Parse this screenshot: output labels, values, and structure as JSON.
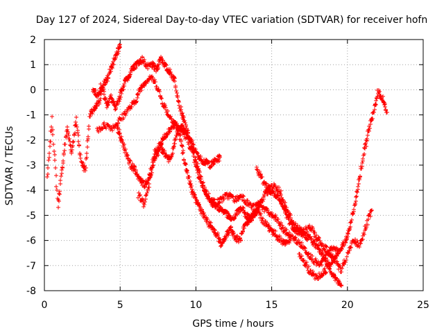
{
  "chart_data": {
    "type": "scatter",
    "title": "Day 127 of 2024, Sidereal Day-to-day VTEC variation (SDTVAR) for receiver hofn",
    "xlabel": "GPS time / hours",
    "ylabel": "SDTVAR / TECUs",
    "xlim": [
      0,
      25
    ],
    "ylim": [
      -8,
      2
    ],
    "xticks": [
      0,
      5,
      10,
      15,
      20,
      25
    ],
    "yticks": [
      -8,
      -7,
      -6,
      -5,
      -4,
      -3,
      -2,
      -1,
      0,
      1,
      2
    ],
    "xtick_labels": [
      "0",
      "5",
      "10",
      "15",
      "20",
      "25"
    ],
    "ytick_labels": [
      "-8",
      "-7",
      "-6",
      "-5",
      "-4",
      "-3",
      "-2",
      "-1",
      "0",
      "1",
      "2"
    ],
    "grid": true,
    "marker": "+",
    "marker_color": "#ff0000",
    "series": [
      {
        "name": "s1",
        "x": [
          0.2,
          0.5,
          0.9,
          1.2,
          1.5,
          1.8,
          2.1,
          2.4,
          2.7,
          3.0,
          3.3,
          3.6,
          3.9,
          4.2,
          4.5,
          4.8,
          5.0
        ],
        "y": [
          -3.5,
          -1.2,
          -4.6,
          -3.0,
          -1.5,
          -2.5,
          -1.2,
          -2.8,
          -3.2,
          -1.0,
          -0.8,
          -0.5,
          0.2,
          0.5,
          1.0,
          1.5,
          1.8
        ]
      },
      {
        "name": "s2",
        "x": [
          3.2,
          3.5,
          3.8,
          4.1,
          4.4,
          4.7,
          5.0,
          5.3,
          5.6,
          5.9,
          6.2,
          6.5,
          6.8,
          7.1,
          7.4,
          7.7,
          8.0,
          8.3,
          8.6,
          8.9,
          9.2,
          9.5,
          9.8,
          10.1,
          10.4,
          10.7,
          11.0,
          11.3,
          11.6
        ],
        "y": [
          0.0,
          -0.2,
          0.2,
          -0.6,
          -0.3,
          -0.8,
          -0.2,
          0.3,
          0.6,
          0.9,
          1.1,
          1.2,
          0.9,
          1.0,
          0.8,
          1.3,
          0.9,
          0.7,
          0.4,
          -0.6,
          -1.2,
          -1.8,
          -2.2,
          -2.6,
          -2.8,
          -2.9,
          -3.0,
          -2.8,
          -2.7
        ]
      },
      {
        "name": "s3",
        "x": [
          3.5,
          4.0,
          4.5,
          5.0,
          5.5,
          6.0,
          6.3,
          6.6,
          7.0,
          7.4,
          7.8,
          8.2,
          8.6,
          9.0,
          9.4,
          9.8,
          10.2,
          10.6,
          11.0,
          11.4,
          11.8,
          12.2,
          12.6,
          13.0,
          13.4,
          13.8,
          14.2,
          14.6,
          15.0,
          15.4,
          15.8,
          16.2,
          16.6,
          17.0,
          17.4,
          17.8,
          18.2,
          18.6,
          19.0,
          19.4
        ],
        "y": [
          -1.6,
          -1.4,
          -1.5,
          -1.2,
          -0.8,
          -0.5,
          0.0,
          0.3,
          0.5,
          0.2,
          -0.5,
          -1.0,
          -1.3,
          -1.6,
          -1.9,
          -2.6,
          -3.5,
          -4.0,
          -4.4,
          -4.5,
          -4.3,
          -4.2,
          -4.4,
          -4.2,
          -4.5,
          -4.7,
          -4.5,
          -4.8,
          -5.0,
          -5.2,
          -5.6,
          -5.8,
          -6.0,
          -6.2,
          -6.5,
          -6.8,
          -7.0,
          -6.6,
          -6.3,
          -6.4
        ]
      },
      {
        "name": "s4",
        "x": [
          4.8,
          5.1,
          5.4,
          5.7,
          6.0,
          6.3,
          6.6,
          6.9,
          7.2,
          7.5,
          7.8,
          8.1,
          8.4,
          8.7,
          9.0,
          9.3,
          9.6,
          9.9,
          10.2,
          10.5,
          10.8,
          11.1,
          11.4,
          11.7,
          12.0,
          12.3,
          12.6,
          12.9,
          13.2,
          13.5,
          13.8,
          14.1,
          14.4,
          14.7,
          15.0,
          15.3,
          15.6,
          15.9,
          16.2
        ],
        "y": [
          -1.5,
          -2.0,
          -2.5,
          -3.0,
          -3.2,
          -3.6,
          -3.8,
          -3.5,
          -2.8,
          -2.5,
          -2.0,
          -1.7,
          -1.5,
          -1.4,
          -2.0,
          -3.0,
          -3.7,
          -4.3,
          -4.6,
          -5.0,
          -5.3,
          -5.5,
          -5.8,
          -6.2,
          -5.8,
          -5.5,
          -5.9,
          -6.0,
          -5.5,
          -5.2,
          -5.0,
          -4.8,
          -5.2,
          -5.4,
          -5.6,
          -5.8,
          -6.0,
          -6.1,
          -6.0
        ]
      },
      {
        "name": "s5",
        "x": [
          6.2,
          6.6,
          7.0,
          7.3,
          7.6,
          7.9,
          8.2,
          8.5,
          8.8,
          9.1,
          9.4,
          9.7,
          10.0,
          10.3,
          10.6,
          10.9,
          11.2,
          11.5,
          11.8,
          12.1,
          12.4,
          12.7,
          13.0,
          13.3,
          13.6,
          13.9,
          14.2,
          14.5,
          14.8,
          15.1,
          15.4,
          15.7,
          16.0,
          16.3,
          16.6,
          16.9,
          17.2,
          17.5,
          17.8,
          18.1,
          18.4,
          18.7,
          19.0,
          19.3,
          19.6
        ],
        "y": [
          -4.2,
          -4.6,
          -3.5,
          -2.5,
          -2.2,
          -2.5,
          -2.8,
          -2.4,
          -1.6,
          -1.5,
          -1.7,
          -2.2,
          -2.8,
          -3.5,
          -4.0,
          -4.4,
          -4.6,
          -4.7,
          -4.8,
          -5.0,
          -5.2,
          -4.9,
          -4.7,
          -5.0,
          -5.1,
          -4.9,
          -4.6,
          -4.2,
          -4.0,
          -4.1,
          -4.3,
          -4.6,
          -5.0,
          -5.4,
          -5.6,
          -5.7,
          -5.8,
          -5.9,
          -6.1,
          -6.3,
          -6.6,
          -6.9,
          -7.3,
          -7.6,
          -7.8
        ]
      },
      {
        "name": "s6",
        "x": [
          14.0,
          14.4,
          14.8,
          15.2,
          15.6,
          16.0,
          16.4,
          16.8,
          17.2,
          17.6,
          18.0,
          18.4,
          18.8,
          19.2,
          19.6,
          20.0,
          20.4,
          20.8,
          21.2,
          21.6
        ],
        "y": [
          -3.1,
          -3.6,
          -3.9,
          -3.8,
          -4.1,
          -4.8,
          -5.3,
          -5.5,
          -5.6,
          -5.5,
          -5.9,
          -6.2,
          -6.5,
          -6.8,
          -7.2,
          -6.6,
          -6.0,
          -6.2,
          -5.5,
          -4.8
        ]
      },
      {
        "name": "s7",
        "x": [
          16.8,
          17.2,
          17.6,
          18.0,
          18.4,
          18.8,
          19.2,
          19.6,
          19.9,
          20.2,
          20.5,
          20.8,
          21.1,
          21.4,
          21.7,
          22.0,
          22.3,
          22.6
        ],
        "y": [
          -6.6,
          -6.9,
          -7.3,
          -7.5,
          -7.3,
          -7.0,
          -6.6,
          -6.3,
          -6.0,
          -5.4,
          -4.5,
          -3.5,
          -2.5,
          -1.6,
          -1.0,
          -0.1,
          -0.3,
          -0.9
        ]
      }
    ]
  }
}
